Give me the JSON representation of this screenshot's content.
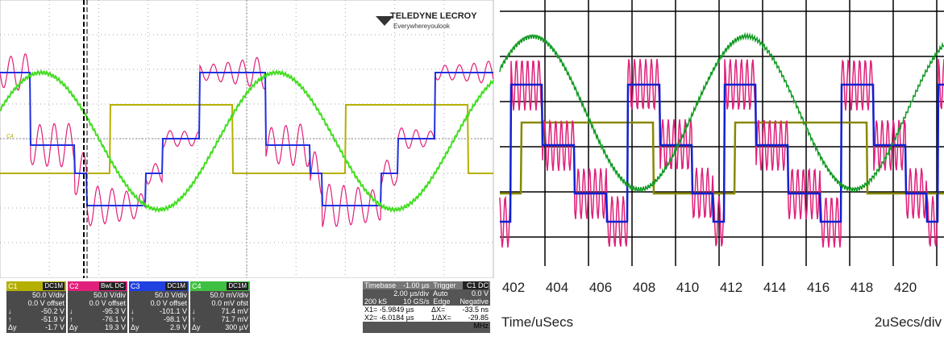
{
  "left_scope": {
    "logo": {
      "brand": "TELEDYNE LECROY",
      "tagline": "Everywhereyoulook"
    },
    "level_marker": "C4",
    "channels": [
      {
        "name": "C1",
        "coupling": "DC1M",
        "scale": "50.0 V/div",
        "offset": "0.0 V offset",
        "rows": [
          [
            "↓",
            "-50.2 V"
          ],
          [
            "↑",
            "-51.9 V"
          ],
          [
            "Δy",
            "-1.7 V"
          ]
        ]
      },
      {
        "name": "C2",
        "coupling": "BwL DC",
        "scale": "50.0 V/div",
        "offset": "0.0 V offset",
        "rows": [
          [
            "↓",
            "-95.3 V"
          ],
          [
            "↑",
            "-76.1 V"
          ],
          [
            "Δy",
            "19.3 V"
          ]
        ]
      },
      {
        "name": "C3",
        "coupling": "DC1M",
        "scale": "50.0 V/div",
        "offset": "0.0 V offset",
        "rows": [
          [
            "↓",
            "-101.1 V"
          ],
          [
            "↑",
            "-98.1 V"
          ],
          [
            "Δy",
            "2.9 V"
          ]
        ]
      },
      {
        "name": "C4",
        "coupling": "DC1M",
        "scale": "50.0 mV/div",
        "offset": "0.0 mV ofst",
        "rows": [
          [
            "↓",
            "71.4 mV"
          ],
          [
            "↑",
            "71.7 mV"
          ],
          [
            "Δy",
            "300 µV"
          ]
        ]
      }
    ],
    "timebase": {
      "label": "Timebase",
      "delay": "-1.00 µs",
      "scale": "2.00 µs/div",
      "samples": "200 kS",
      "rate": "10 GS/s",
      "x1": "X1= -5.9849 µs",
      "x2": "X2= -6.0184 µs",
      "dx": "ΔX=",
      "dx_value": "-33.5 ns",
      "inv_dx": "1/ΔX=",
      "inv_dx_value": "-29.85 MHz"
    },
    "trigger": {
      "label": "Trigger",
      "source": "C1 DC",
      "mode": "Auto",
      "level": "0.0 V",
      "type": "Edge",
      "slope": "Negative"
    }
  },
  "right_scope": {
    "xticks": [
      402,
      404,
      406,
      408,
      410,
      412,
      414,
      416,
      418,
      420
    ],
    "x_label": "Time/uSecs",
    "scale_label": "2uSecs/div"
  }
}
